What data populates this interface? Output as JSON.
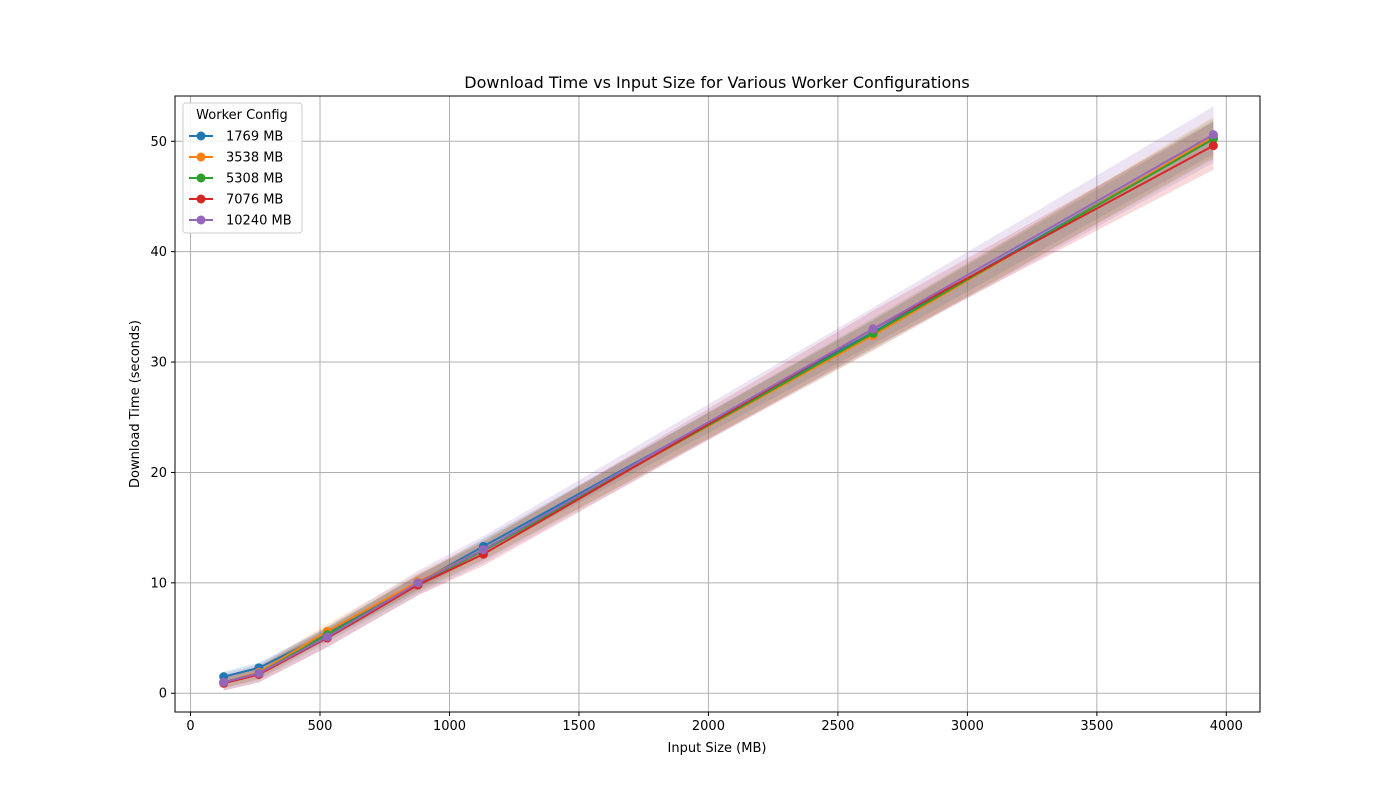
{
  "chart_data": {
    "type": "line",
    "title": "Download Time vs Input Size for Various Worker Configurations",
    "xlabel": "Input Size (MB)",
    "ylabel": "Download Time (seconds)",
    "xlim": [
      -60,
      4130
    ],
    "ylim": [
      -1.7,
      54.1
    ],
    "xticks": [
      0,
      500,
      1000,
      1500,
      2000,
      2500,
      3000,
      3500,
      4000
    ],
    "yticks": [
      0,
      10,
      20,
      30,
      40,
      50
    ],
    "grid": true,
    "legend": {
      "title": "Worker Config",
      "placement": "top-left"
    },
    "x": [
      128,
      264,
      528,
      878,
      1131,
      2636,
      3950
    ],
    "series": [
      {
        "name": "1769 MB",
        "color": "#1f77b4",
        "values": [
          1.5,
          2.3,
          5.4,
          10.0,
          13.3,
          32.7,
          50.3
        ],
        "band": 0.4
      },
      {
        "name": "3538 MB",
        "color": "#ff7f0e",
        "values": [
          1.0,
          1.9,
          5.6,
          10.1,
          13.0,
          32.4,
          50.4
        ],
        "band": 0.5
      },
      {
        "name": "5308 MB",
        "color": "#2ca02c",
        "values": [
          1.0,
          1.8,
          5.3,
          9.9,
          12.9,
          32.6,
          50.2
        ],
        "band": 0.5
      },
      {
        "name": "7076 MB",
        "color": "#d62728",
        "values": [
          0.9,
          1.7,
          5.0,
          9.8,
          12.6,
          33.0,
          49.6
        ],
        "band": 0.6
      },
      {
        "name": "10240 MB",
        "color": "#9467bd",
        "values": [
          1.0,
          1.8,
          5.1,
          10.0,
          13.0,
          33.0,
          50.6
        ],
        "band": 0.7
      }
    ]
  }
}
